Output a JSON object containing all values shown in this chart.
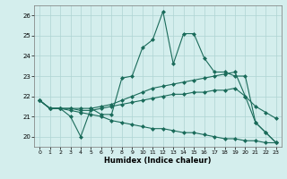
{
  "title": "",
  "xlabel": "Humidex (Indice chaleur)",
  "xlim": [
    -0.5,
    23.5
  ],
  "ylim": [
    19.5,
    26.5
  ],
  "yticks": [
    20,
    21,
    22,
    23,
    24,
    25,
    26
  ],
  "xticks": [
    0,
    1,
    2,
    3,
    4,
    5,
    6,
    7,
    8,
    9,
    10,
    11,
    12,
    13,
    14,
    15,
    16,
    17,
    18,
    19,
    20,
    21,
    22,
    23
  ],
  "bg_color": "#d4eeed",
  "grid_color": "#aed4d2",
  "line_color": "#1a6b5a",
  "lines": [
    {
      "x": [
        0,
        1,
        2,
        3,
        4,
        5,
        6,
        7,
        8,
        9,
        10,
        11,
        12,
        13,
        14,
        15,
        16,
        17,
        18,
        19,
        20,
        21,
        22,
        23
      ],
      "y": [
        21.8,
        21.4,
        21.4,
        21.0,
        20.0,
        21.4,
        21.1,
        21.1,
        22.9,
        23.0,
        24.4,
        24.8,
        26.2,
        23.6,
        25.1,
        25.1,
        23.9,
        23.2,
        23.2,
        23.0,
        23.0,
        20.7,
        20.2,
        19.7
      ]
    },
    {
      "x": [
        0,
        1,
        2,
        3,
        4,
        5,
        6,
        7,
        8,
        9,
        10,
        11,
        12,
        13,
        14,
        15,
        16,
        17,
        18,
        19,
        20,
        21,
        22,
        23
      ],
      "y": [
        21.8,
        21.4,
        21.4,
        21.4,
        21.4,
        21.4,
        21.5,
        21.6,
        21.8,
        22.0,
        22.2,
        22.4,
        22.5,
        22.6,
        22.7,
        22.8,
        22.9,
        23.0,
        23.1,
        23.2,
        22.0,
        20.7,
        20.2,
        19.7
      ]
    },
    {
      "x": [
        0,
        1,
        2,
        3,
        4,
        5,
        6,
        7,
        8,
        9,
        10,
        11,
        12,
        13,
        14,
        15,
        16,
        17,
        18,
        19,
        20,
        21,
        22,
        23
      ],
      "y": [
        21.8,
        21.4,
        21.4,
        21.4,
        21.3,
        21.3,
        21.4,
        21.5,
        21.6,
        21.7,
        21.8,
        21.9,
        22.0,
        22.1,
        22.1,
        22.2,
        22.2,
        22.3,
        22.3,
        22.4,
        22.0,
        21.5,
        21.2,
        20.9
      ]
    },
    {
      "x": [
        0,
        1,
        2,
        3,
        4,
        5,
        6,
        7,
        8,
        9,
        10,
        11,
        12,
        13,
        14,
        15,
        16,
        17,
        18,
        19,
        20,
        21,
        22,
        23
      ],
      "y": [
        21.8,
        21.4,
        21.4,
        21.3,
        21.2,
        21.1,
        21.0,
        20.8,
        20.7,
        20.6,
        20.5,
        20.4,
        20.4,
        20.3,
        20.2,
        20.2,
        20.1,
        20.0,
        19.9,
        19.9,
        19.8,
        19.8,
        19.7,
        19.7
      ]
    }
  ]
}
